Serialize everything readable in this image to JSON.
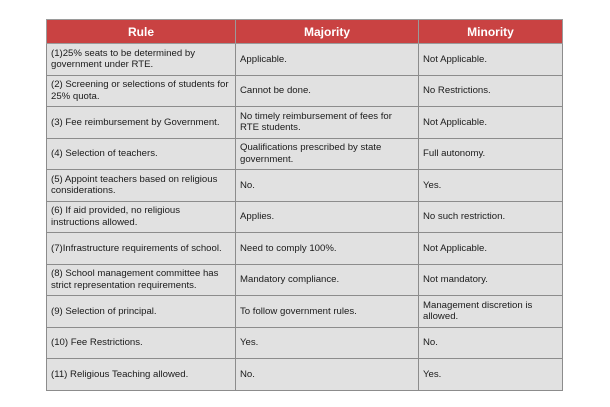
{
  "headers": [
    "Rule",
    "Majority",
    "Minority"
  ],
  "rows": [
    {
      "rule": "(1)25% seats to be determined by government under RTE.",
      "majority": "Applicable.",
      "minority": "Not Applicable."
    },
    {
      "rule": "(2) Screening or selections of students for 25% quota.",
      "majority": "Cannot be done.",
      "minority": "No Restrictions."
    },
    {
      "rule": "(3) Fee reimbursement by Government.",
      "majority": "No timely reimbursement of fees for RTE students.",
      "minority": "Not Applicable."
    },
    {
      "rule": "(4) Selection of teachers.",
      "majority": "Qualifications prescribed by state government.",
      "minority": "Full autonomy."
    },
    {
      "rule": "(5) Appoint teachers based on religious considerations.",
      "majority": "No.",
      "minority": "Yes."
    },
    {
      "rule": "(6) If aid provided, no religious instructions allowed.",
      "majority": "Applies.",
      "minority": "No such restriction."
    },
    {
      "rule": "(7)Infrastructure requirements of school.",
      "majority": "Need to comply 100%.",
      "minority": "Not Applicable."
    },
    {
      "rule": "(8) School management committee has strict representation requirements.",
      "majority": "Mandatory compliance.",
      "minority": "Not mandatory."
    },
    {
      "rule": "(9) Selection of principal.",
      "majority": "To follow government  rules.",
      "minority": "Management discretion is allowed."
    },
    {
      "rule": "(10) Fee Restrictions.",
      "majority": "Yes.",
      "minority": "No."
    },
    {
      "rule": "(11) Religious Teaching allowed.",
      "majority": "No.",
      "minority": "Yes."
    }
  ],
  "colors": {
    "header_bg": "#c94242",
    "cell_bg": "#e1e1e1",
    "border": "#8c8c8c"
  }
}
